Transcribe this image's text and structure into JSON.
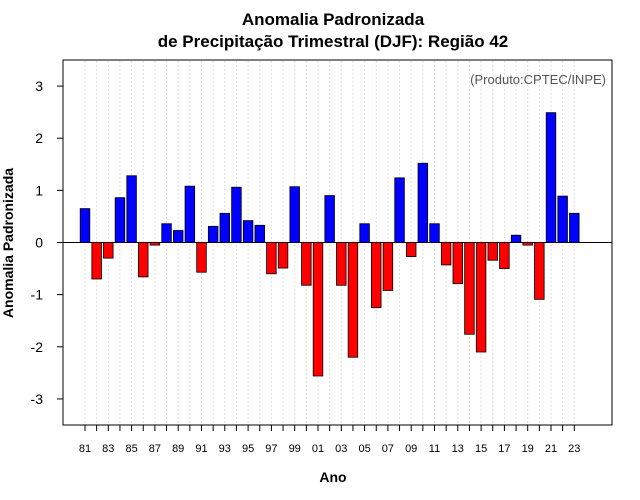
{
  "colors": {
    "positive": "#0000ff",
    "negative": "#ff0000",
    "bar_outline": "#000000",
    "grid": "#d3d3d3"
  },
  "chart_data": {
    "type": "bar",
    "title": "Anomalia Padronizada",
    "subtitle": "de Precipitação Trimestral (DJF): Região 42",
    "xlabel": "Ano",
    "ylabel": "Anomalia Padronizada",
    "credit": "(Produto:CPTEC/INPE)",
    "ylim": [
      -3.5,
      3.5
    ],
    "yticks": [
      -3,
      -2,
      -1,
      0,
      1,
      2,
      3
    ],
    "ytick_labels": [
      "-3",
      "-2",
      "-1",
      "0",
      "1",
      "2",
      "3"
    ],
    "grid": "vertical dotted",
    "categories": [
      "1981",
      "1982",
      "1983",
      "1984",
      "1985",
      "1986",
      "1987",
      "1988",
      "1989",
      "1990",
      "1991",
      "1992",
      "1993",
      "1994",
      "1995",
      "1996",
      "1997",
      "1998",
      "1999",
      "2000",
      "2001",
      "2002",
      "2003",
      "2004",
      "2005",
      "2006",
      "2007",
      "2008",
      "2009",
      "2010",
      "2011",
      "2012",
      "2013",
      "2014",
      "2015",
      "2016",
      "2017",
      "2018",
      "2019",
      "2020",
      "2021",
      "2022",
      "2023"
    ],
    "values": [
      0.65,
      -0.7,
      -0.3,
      0.86,
      1.28,
      -0.66,
      -0.05,
      0.36,
      0.23,
      1.08,
      -0.57,
      0.31,
      0.56,
      1.06,
      0.42,
      0.33,
      -0.6,
      -0.49,
      1.07,
      -0.82,
      -2.56,
      0.9,
      -0.82,
      -2.2,
      0.36,
      -1.25,
      -0.92,
      1.24,
      -0.27,
      1.52,
      0.36,
      -0.43,
      -0.79,
      -1.76,
      -2.1,
      -0.34,
      -0.5,
      0.14,
      -0.05,
      -1.09,
      2.49,
      0.89,
      0.56
    ],
    "xtick_labels": [
      {
        "year": "1981",
        "label": "81"
      },
      {
        "year": "1983",
        "label": "83"
      },
      {
        "year": "1985",
        "label": "85"
      },
      {
        "year": "1987",
        "label": "87"
      },
      {
        "year": "1989",
        "label": "89"
      },
      {
        "year": "1991",
        "label": "91"
      },
      {
        "year": "1993",
        "label": "93"
      },
      {
        "year": "1995",
        "label": "95"
      },
      {
        "year": "1997",
        "label": "97"
      },
      {
        "year": "1999",
        "label": "99"
      },
      {
        "year": "2001",
        "label": "01"
      },
      {
        "year": "2003",
        "label": "03"
      },
      {
        "year": "2005",
        "label": "05"
      },
      {
        "year": "2007",
        "label": "07"
      },
      {
        "year": "2009",
        "label": "09"
      },
      {
        "year": "2011",
        "label": "11"
      },
      {
        "year": "2013",
        "label": "13"
      },
      {
        "year": "2015",
        "label": "15"
      },
      {
        "year": "2017",
        "label": "17"
      },
      {
        "year": "2019",
        "label": "19"
      },
      {
        "year": "2021",
        "label": "21"
      },
      {
        "year": "2023",
        "label": "23"
      }
    ]
  }
}
